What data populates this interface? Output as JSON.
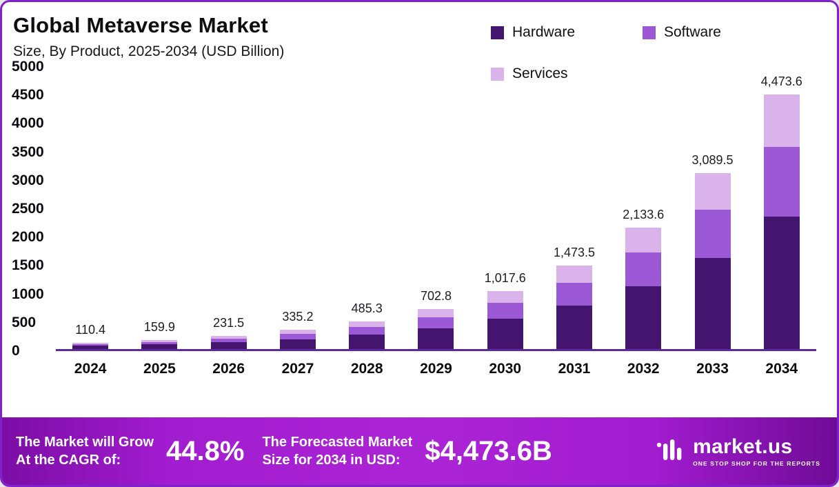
{
  "header": {
    "title": "Global Metaverse Market",
    "subtitle": "Size, By Product, 2025-2034 (USD Billion)"
  },
  "chart_data": {
    "type": "bar",
    "stacked": true,
    "title": "Global Metaverse Market",
    "subtitle": "Size, By Product, 2025-2034 (USD Billion)",
    "xlabel": "",
    "ylabel": "USD Billion",
    "ylim": [
      0,
      5000
    ],
    "yticks": [
      "0",
      "500",
      "1000",
      "1500",
      "2000",
      "2500",
      "3000",
      "3500",
      "4000",
      "4500",
      "5000"
    ],
    "grid": false,
    "legend_position": "top-right",
    "categories": [
      "2024",
      "2025",
      "2026",
      "2027",
      "2028",
      "2029",
      "2030",
      "2031",
      "2032",
      "2033",
      "2034"
    ],
    "totals": [
      "110.4",
      "159.9",
      "231.5",
      "335.2",
      "485.3",
      "702.8",
      "1,017.6",
      "1,473.5",
      "2,133.6",
      "3,089.5",
      "4,473.6"
    ],
    "series": [
      {
        "name": "Hardware",
        "color": "#44156e",
        "values": [
          57.4,
          83.1,
          120.4,
          174.3,
          252.4,
          365.5,
          529.2,
          766.2,
          1109.5,
          1606.5,
          2326.3
        ]
      },
      {
        "name": "Software",
        "color": "#9b59d6",
        "values": [
          30.4,
          44.0,
          63.7,
          92.2,
          133.5,
          193.3,
          279.8,
          405.2,
          586.7,
          849.6,
          1230.2
        ]
      },
      {
        "name": "Services",
        "color": "#d9b3ea",
        "values": [
          22.6,
          32.8,
          47.4,
          68.7,
          99.4,
          144.0,
          208.6,
          302.1,
          437.4,
          633.4,
          917.1
        ]
      }
    ]
  },
  "banner": {
    "cagr_label_line1": "The Market will Grow",
    "cagr_label_line2": "At the CAGR of:",
    "cagr_value": "44.8%",
    "forecast_label_line1": "The Forecasted Market",
    "forecast_label_line2": "Size for 2034 in USD:",
    "forecast_value": "$4,473.6B",
    "brand_name": "market.us",
    "brand_tagline": "ONE STOP SHOP FOR THE REPORTS"
  }
}
